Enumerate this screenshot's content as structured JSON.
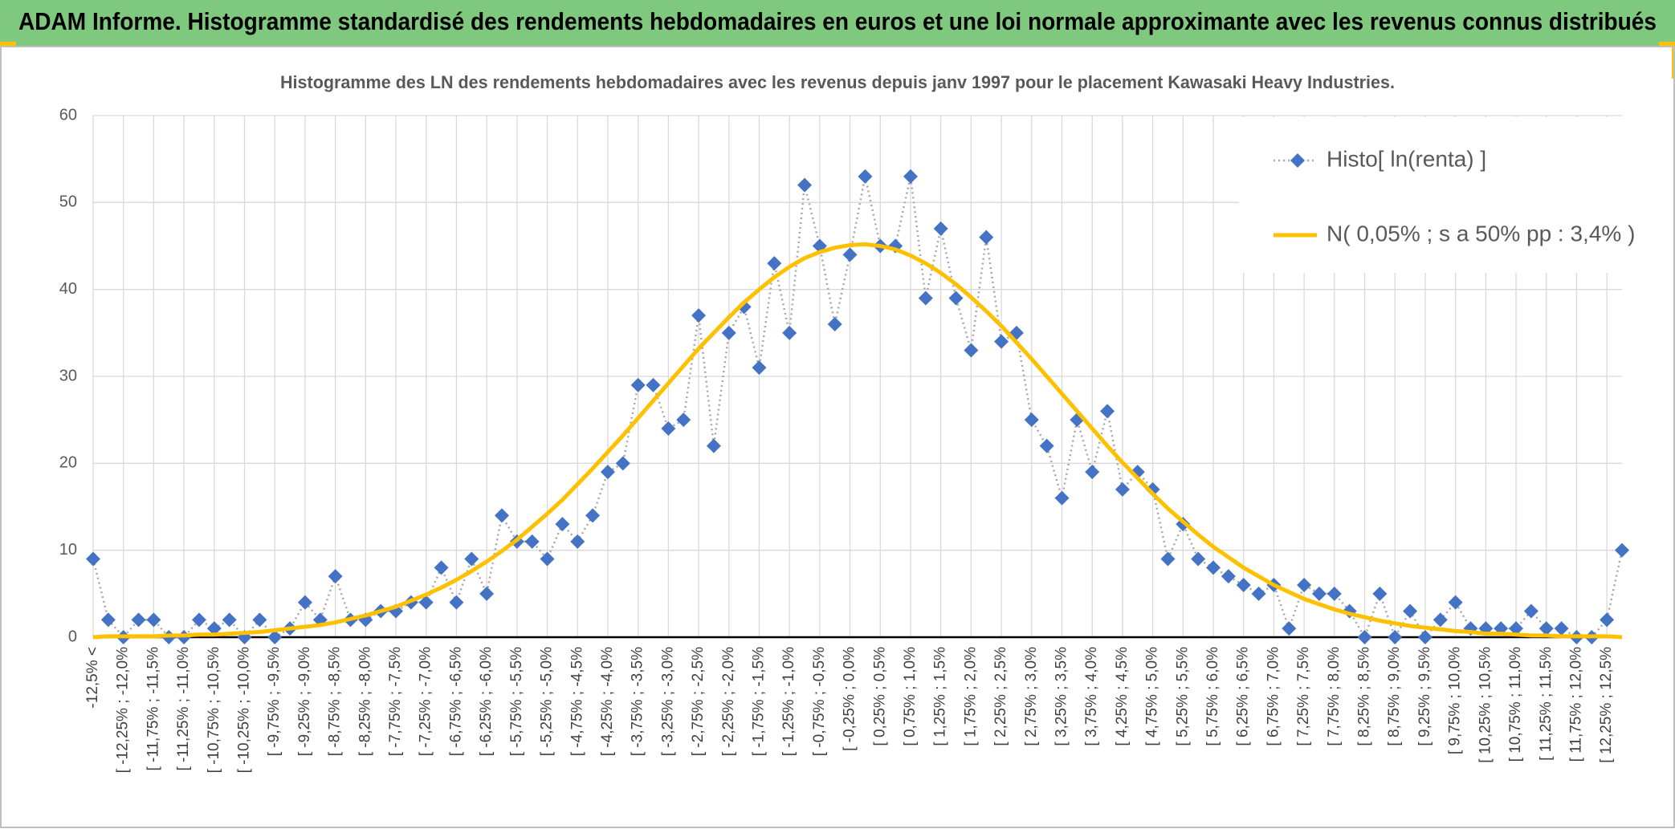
{
  "header": {
    "title": "ADAM Informe. Histogramme standardisé des rendements hebdomadaires en euros et une loi normale approximante avec les revenus connus distribués"
  },
  "chart_data": {
    "type": "line",
    "title": "Histogramme des LN des rendements hebdomadaires avec les revenus depuis janv 1997 pour le placement Kawasaki Heavy Industries.",
    "categories": [
      "-12,5% <",
      null,
      "[ -12,25% ; -12,0%",
      null,
      "[ -11,75% ; -11,5%",
      null,
      "[ -11,25% ; -11,0%",
      null,
      "[ -10,75% ; -10,5%",
      null,
      "[ -10,25% ; -10,0%",
      null,
      "[ -9,75% ; -9,5%",
      null,
      "[ -9,25% ; -9,0%",
      null,
      "[ -8,75% ; -8,5%",
      null,
      "[ -8,25% ; -8,0%",
      null,
      "[ -7,75% ; -7,5%",
      null,
      "[ -7,25% ; -7,0%",
      null,
      "[ -6,75% ; -6,5%",
      null,
      "[ -6,25% ; -6,0%",
      null,
      "[ -5,75% ; -5,5%",
      null,
      "[ -5,25% ; -5,0%",
      null,
      "[ -4,75% ; -4,5%",
      null,
      "[ -4,25% ; -4,0%",
      null,
      "[ -3,75% ; -3,5%",
      null,
      "[ -3,25% ; -3,0%",
      null,
      "[ -2,75% ; -2,5%",
      null,
      "[ -2,25% ; -2,0%",
      null,
      "[ -1,75% ; -1,5%",
      null,
      "[ -1,25% ; -1,0%",
      null,
      "[ -0,75% ; -0,5%",
      null,
      "[ -0,25% ; 0,0%",
      null,
      "[ 0,25% ; 0,5%",
      null,
      "[ 0,75% ; 1,0%",
      null,
      "[ 1,25% ; 1,5%",
      null,
      "[ 1,75% ; 2,0%",
      null,
      "[ 2,25% ; 2,5%",
      null,
      "[ 2,75% ; 3,0%",
      null,
      "[ 3,25% ; 3,5%",
      null,
      "[ 3,75% ; 4,0%",
      null,
      "[ 4,25% ; 4,5%",
      null,
      "[ 4,75% ; 5,0%",
      null,
      "[ 5,25% ; 5,5%",
      null,
      "[ 5,75% ; 6,0%",
      null,
      "[ 6,25% ; 6,5%",
      null,
      "[ 6,75% ; 7,0%",
      null,
      "[ 7,25% ; 7,5%",
      null,
      "[ 7,75% ; 8,0%",
      null,
      "[ 8,25% ; 8,5%",
      null,
      "[ 8,75% ; 9,0%",
      null,
      "[ 9,25% ; 9,5%",
      null,
      "[ 9,75% ; 10,0%",
      null,
      "[ 10,25% ; 10,5%",
      null,
      "[ 10,75% ; 11,0%",
      null,
      "[ 11,25% ; 11,5%",
      null,
      "[ 11,75% ; 12,0%",
      null,
      "[ 12,25% ; 12,5%",
      null
    ],
    "series": [
      {
        "name": "Histo[ ln(renta) ]",
        "color": "#4472c4",
        "line_color": "#a6a6a6",
        "line_style": "dotted",
        "marker": "diamond",
        "values": [
          9,
          2,
          0,
          2,
          2,
          0,
          0,
          2,
          1,
          2,
          0,
          2,
          0,
          1,
          4,
          2,
          7,
          2,
          2,
          3,
          3,
          4,
          4,
          8,
          4,
          9,
          5,
          14,
          11,
          11,
          9,
          13,
          11,
          14,
          19,
          20,
          29,
          29,
          24,
          25,
          37,
          22,
          35,
          38,
          31,
          43,
          35,
          52,
          45,
          36,
          44,
          53,
          45,
          45,
          53,
          39,
          47,
          39,
          33,
          46,
          34,
          35,
          25,
          22,
          16,
          25,
          19,
          26,
          17,
          19,
          17,
          9,
          13,
          9,
          8,
          7,
          6,
          5,
          6,
          1,
          6,
          5,
          5,
          3,
          0,
          5,
          0,
          3,
          0,
          2,
          4,
          1,
          1,
          1,
          1,
          3,
          1,
          1,
          0,
          0,
          2,
          10
        ]
      },
      {
        "name": "N( 0,05% ; s a 50% pp : 3,4% )",
        "color": "#ffc000",
        "line_style": "solid",
        "marker": "none",
        "values": [
          0.0,
          0.1,
          0.1,
          0.1,
          0.1,
          0.2,
          0.2,
          0.3,
          0.3,
          0.4,
          0.5,
          0.6,
          0.8,
          1.0,
          1.2,
          1.4,
          1.7,
          2.1,
          2.5,
          3.0,
          3.5,
          4.2,
          4.9,
          5.7,
          6.6,
          7.6,
          8.7,
          9.9,
          11.2,
          12.7,
          14.2,
          15.8,
          17.6,
          19.4,
          21.3,
          23.2,
          25.2,
          27.2,
          29.2,
          31.2,
          33.2,
          35.0,
          36.8,
          38.5,
          40.0,
          41.4,
          42.6,
          43.6,
          44.3,
          44.8,
          45.1,
          45.2,
          45.0,
          44.6,
          43.9,
          43.0,
          41.9,
          40.6,
          39.1,
          37.5,
          35.8,
          33.9,
          32.0,
          30.0,
          28.0,
          26.0,
          24.0,
          22.0,
          20.1,
          18.3,
          16.5,
          14.8,
          13.3,
          11.8,
          10.4,
          9.2,
          8.0,
          7.0,
          6.0,
          5.2,
          4.4,
          3.8,
          3.2,
          2.7,
          2.3,
          1.9,
          1.6,
          1.3,
          1.1,
          0.9,
          0.7,
          0.6,
          0.4,
          0.4,
          0.3,
          0.2,
          0.2,
          0.1,
          0.1,
          0.1,
          0.1,
          0.0
        ]
      }
    ],
    "ylim": [
      0,
      60
    ],
    "yticks": [
      0,
      10,
      20,
      30,
      40,
      50,
      60
    ],
    "grid": true,
    "legend": "upper right"
  }
}
